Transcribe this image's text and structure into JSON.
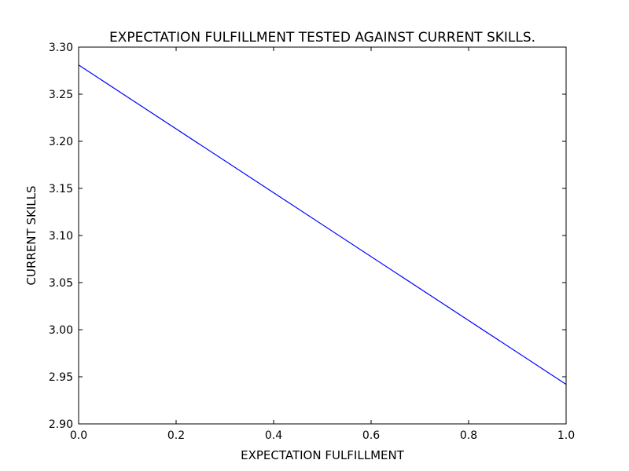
{
  "chart_data": {
    "type": "line",
    "title": "EXPECTATION FULFILLMENT TESTED AGAINST CURRENT SKILLS.",
    "xlabel": "EXPECTATION FULFILLMENT",
    "ylabel": "CURRENT SKILLS",
    "xlim": [
      0.0,
      1.0
    ],
    "ylim": [
      2.9,
      3.3
    ],
    "xticks": [
      "0.0",
      "0.2",
      "0.4",
      "0.6",
      "0.8",
      "1.0"
    ],
    "yticks": [
      "2.90",
      "2.95",
      "3.00",
      "3.05",
      "3.10",
      "3.15",
      "3.20",
      "3.25",
      "3.30"
    ],
    "grid": false,
    "series": [
      {
        "color": "#0000ff",
        "x": [
          0.0,
          1.0
        ],
        "y": [
          3.281,
          2.942
        ]
      }
    ]
  }
}
